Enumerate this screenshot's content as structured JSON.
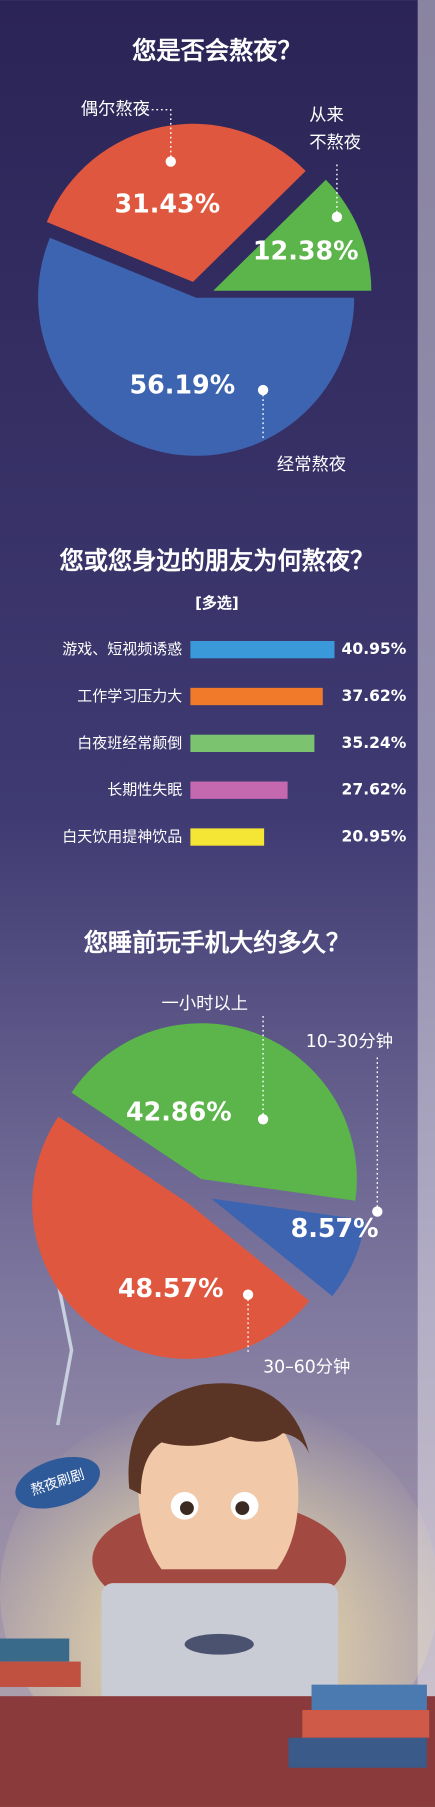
{
  "chart_data": [
    {
      "type": "pie",
      "title": "您是否会熬夜？",
      "categories": [
        "经常熬夜",
        "偶尔熬夜",
        "从来不熬夜"
      ],
      "values": [
        56.19,
        31.43,
        12.38
      ],
      "value_labels": [
        "56.19%",
        "31.43%",
        "12.38%"
      ],
      "colors": [
        "#3d64b0",
        "#e0573f",
        "#5bb54a"
      ]
    },
    {
      "type": "hbar",
      "title": "您或您身边的朋友为何熬夜？",
      "subtitle": "[多选]",
      "categories": [
        "游戏、短视频诱惑",
        "工作学习压力大",
        "白夜班经常颠倒",
        "长期性失眠",
        "白天饮用提神饮品"
      ],
      "values": [
        40.95,
        37.62,
        35.24,
        27.62,
        20.95
      ],
      "value_labels": [
        "40.95%",
        "37.62%",
        "35.24%",
        "27.62%",
        "20.95%"
      ],
      "colors": [
        "#3a9ad9",
        "#f07a2a",
        "#7cc36f",
        "#c468b0",
        "#f5e636"
      ]
    },
    {
      "type": "pie",
      "title": "您睡前玩手机大约多久？",
      "categories": [
        "10–30分钟",
        "30–60分钟",
        "一小时以上"
      ],
      "values": [
        8.57,
        48.57,
        42.86
      ],
      "value_labels": [
        "8.57%",
        "48.57%",
        "42.86%"
      ],
      "colors": [
        "#3d64b0",
        "#e0573f",
        "#5bb54a"
      ]
    }
  ],
  "illustration": {
    "bubble": "熬夜刷剧"
  }
}
